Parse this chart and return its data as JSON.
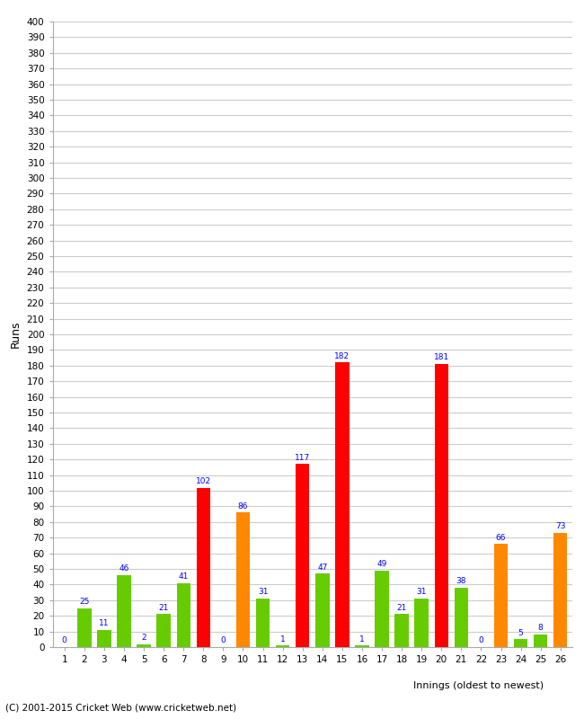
{
  "innings": [
    1,
    2,
    3,
    4,
    5,
    6,
    7,
    8,
    9,
    10,
    11,
    12,
    13,
    14,
    15,
    16,
    17,
    18,
    19,
    20,
    21,
    22,
    23,
    24,
    25,
    26
  ],
  "values": [
    0,
    25,
    11,
    46,
    2,
    21,
    41,
    102,
    0,
    86,
    31,
    1,
    117,
    47,
    182,
    1,
    49,
    21,
    31,
    181,
    38,
    0,
    66,
    5,
    8,
    73
  ],
  "colors": [
    "#66cc00",
    "#66cc00",
    "#66cc00",
    "#66cc00",
    "#66cc00",
    "#66cc00",
    "#66cc00",
    "#ff0000",
    "#66cc00",
    "#ff8800",
    "#66cc00",
    "#66cc00",
    "#ff0000",
    "#66cc00",
    "#ff0000",
    "#66cc00",
    "#66cc00",
    "#66cc00",
    "#66cc00",
    "#ff0000",
    "#66cc00",
    "#66cc00",
    "#ff8800",
    "#66cc00",
    "#66cc00",
    "#ff8800"
  ],
  "xlabel": "Innings (oldest to newest)",
  "ylabel": "Runs",
  "ylim": [
    0,
    400
  ],
  "yticks": [
    0,
    10,
    20,
    30,
    40,
    50,
    60,
    70,
    80,
    90,
    100,
    110,
    120,
    130,
    140,
    150,
    160,
    170,
    180,
    190,
    200,
    210,
    220,
    230,
    240,
    250,
    260,
    270,
    280,
    290,
    300,
    310,
    320,
    330,
    340,
    350,
    360,
    370,
    380,
    390,
    400
  ],
  "footer": "(C) 2001-2015 Cricket Web (www.cricketweb.net)",
  "bg_color": "#ffffff",
  "grid_color": "#cccccc",
  "bar_width": 0.7
}
